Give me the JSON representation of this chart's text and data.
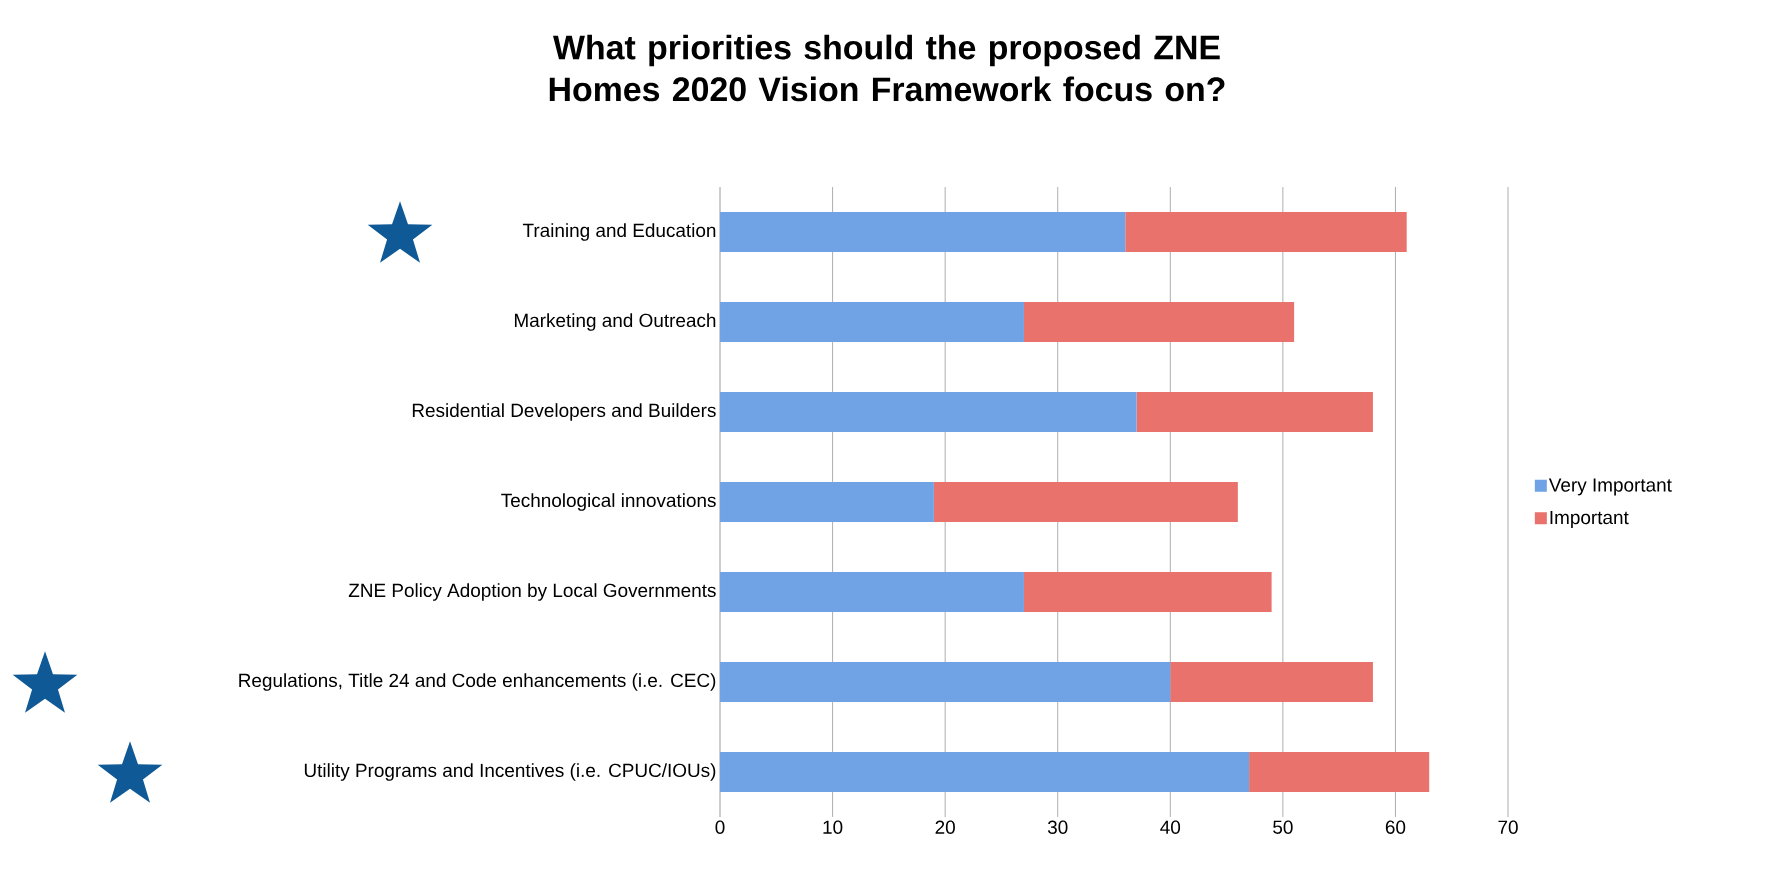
{
  "chart_data": {
    "type": "bar",
    "orientation": "horizontal",
    "stacked": true,
    "title": "What priorities should the proposed ZNE Homes 2020 Vision Framework focus on?",
    "categories": [
      "Training and Education",
      "Marketing and Outreach",
      "Residential Developers and Builders",
      "Technological innovations",
      "ZNE Policy Adoption by Local Governments",
      "Regulations, Title 24 and Code enhancements (i.e. CEC)",
      "Utility Programs and Incentives (i.e. CPUC/IOUs)"
    ],
    "series": [
      {
        "name": "Very Important",
        "color": "#6fa3e6",
        "values": [
          36,
          27,
          37,
          19,
          27,
          40,
          47
        ]
      },
      {
        "name": "Important",
        "color": "#e9726d",
        "values": [
          25,
          24,
          21,
          27,
          22,
          18,
          16
        ]
      }
    ],
    "xlim": [
      0,
      70
    ],
    "xticks": [
      0,
      10,
      20,
      30,
      40,
      50,
      60,
      70
    ],
    "grid": "x",
    "legend": "right"
  }
}
